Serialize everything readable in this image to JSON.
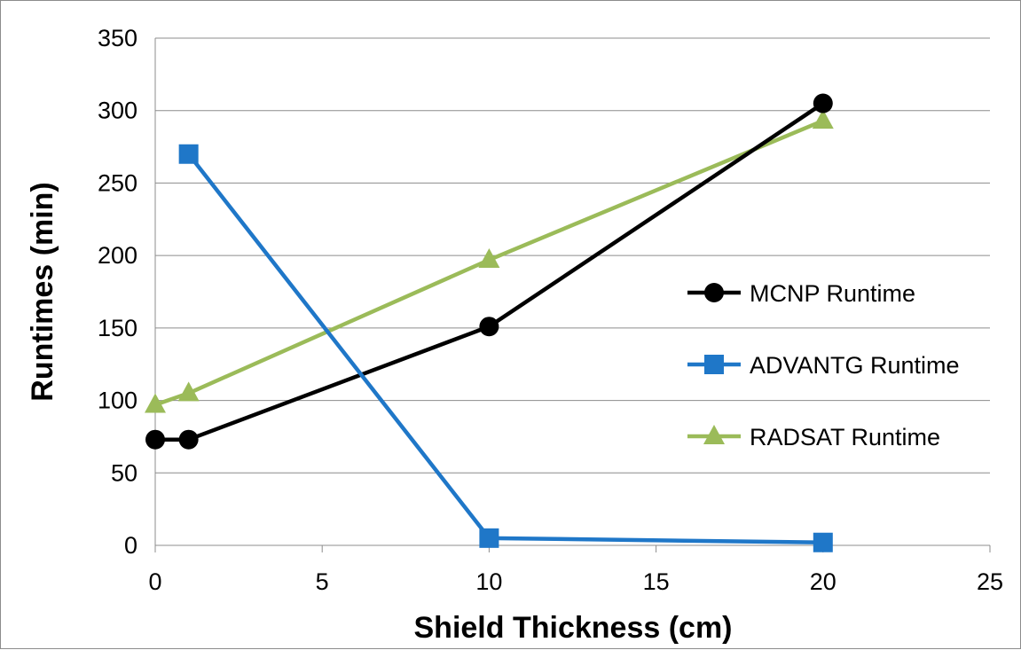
{
  "chart_data": {
    "type": "scatter",
    "title": "",
    "xlabel": "Shield Thickness (cm)",
    "ylabel": "Runtimes (min)",
    "xlim": [
      0,
      25
    ],
    "ylim": [
      0,
      350
    ],
    "xticks": [
      0,
      5,
      10,
      15,
      20,
      25
    ],
    "yticks": [
      0,
      50,
      100,
      150,
      200,
      250,
      300,
      350
    ],
    "grid": "horizontal",
    "legend_position": "right",
    "series": [
      {
        "name": "MCNP Runtime",
        "marker": "circle",
        "color": "#000000",
        "points": [
          [
            0,
            73
          ],
          [
            1,
            73
          ],
          [
            10,
            151
          ],
          [
            20,
            305
          ]
        ]
      },
      {
        "name": "ADVANTG Runtime",
        "marker": "square",
        "color": "#1f77c8",
        "points": [
          [
            1,
            270
          ],
          [
            10,
            5
          ],
          [
            20,
            2
          ]
        ]
      },
      {
        "name": "RADSAT Runtime",
        "marker": "triangle",
        "color": "#9bbb59",
        "points": [
          [
            0,
            97
          ],
          [
            1,
            105
          ],
          [
            10,
            197
          ],
          [
            20,
            293
          ]
        ]
      }
    ]
  }
}
